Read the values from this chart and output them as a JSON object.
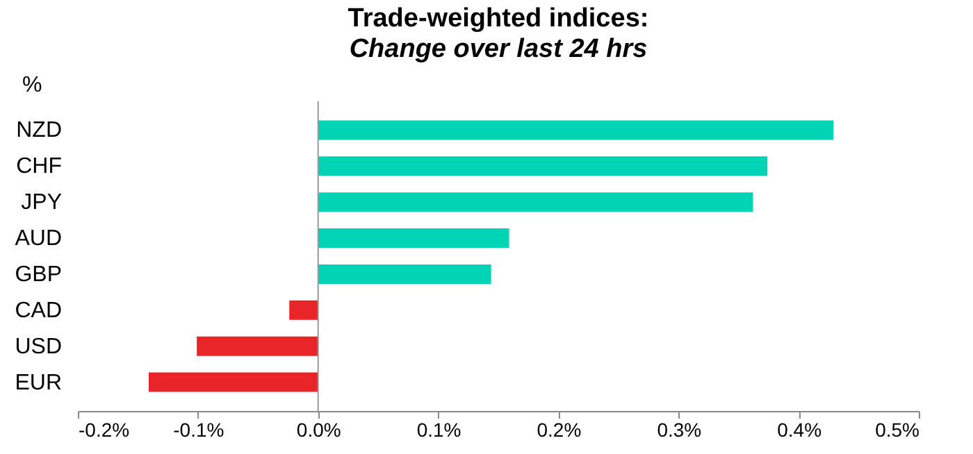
{
  "chart_data": {
    "type": "bar",
    "orientation": "horizontal",
    "title": "Trade-weighted indices:",
    "subtitle": "Change over last 24 hrs",
    "categories": [
      "NZD",
      "CHF",
      "JPY",
      "AUD",
      "GBP",
      "CAD",
      "USD",
      "EUR"
    ],
    "values": [
      0.429,
      0.374,
      0.362,
      0.159,
      0.144,
      -0.024,
      -0.101,
      -0.141
    ],
    "colors": [
      "#00d4b4",
      "#00d4b4",
      "#00d4b4",
      "#00d4b4",
      "#00d4b4",
      "#e8262a",
      "#e8262a",
      "#e8262a"
    ],
    "xlim": [
      -0.2,
      0.5
    ],
    "xticks": [
      {
        "value": -0.2,
        "label": "-0.2%"
      },
      {
        "value": -0.1,
        "label": "-0.1%"
      },
      {
        "value": 0,
        "label": "0.0%"
      },
      {
        "value": 0.1,
        "label": "0.1%"
      },
      {
        "value": 0.2,
        "label": "0.2%"
      },
      {
        "value": 0.3,
        "label": "0.3%"
      },
      {
        "value": 0.4,
        "label": "0.4%"
      },
      {
        "value": 0.5,
        "label": "0.5%"
      }
    ],
    "annotations": [
      "%"
    ]
  }
}
